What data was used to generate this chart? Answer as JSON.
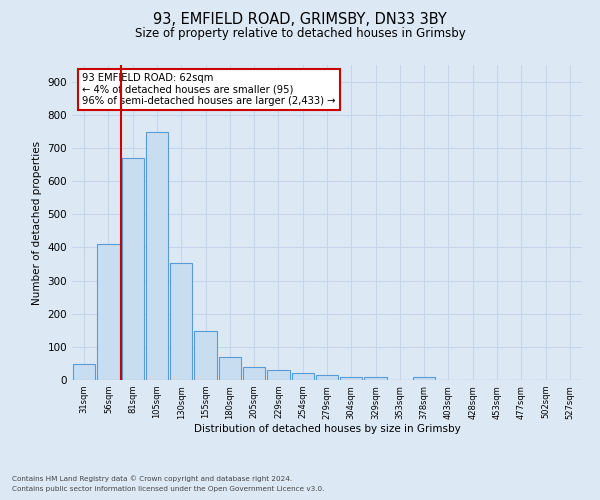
{
  "title": "93, EMFIELD ROAD, GRIMSBY, DN33 3BY",
  "subtitle": "Size of property relative to detached houses in Grimsby",
  "xlabel": "Distribution of detached houses by size in Grimsby",
  "ylabel": "Number of detached properties",
  "footnote1": "Contains HM Land Registry data © Crown copyright and database right 2024.",
  "footnote2": "Contains public sector information licensed under the Open Government Licence v3.0.",
  "annotation_line1": "93 EMFIELD ROAD: 62sqm",
  "annotation_line2": "← 4% of detached houses are smaller (95)",
  "annotation_line3": "96% of semi-detached houses are larger (2,433) →",
  "bar_values": [
    48,
    410,
    670,
    748,
    353,
    147,
    70,
    40,
    30,
    22,
    15,
    10,
    8,
    0,
    10,
    0,
    0,
    0,
    0,
    0,
    0
  ],
  "categories": [
    "31sqm",
    "56sqm",
    "81sqm",
    "105sqm",
    "130sqm",
    "155sqm",
    "180sqm",
    "205sqm",
    "229sqm",
    "254sqm",
    "279sqm",
    "304sqm",
    "329sqm",
    "353sqm",
    "378sqm",
    "403sqm",
    "428sqm",
    "453sqm",
    "477sqm",
    "502sqm",
    "527sqm"
  ],
  "bar_edge_color": "#5b9bd5",
  "bar_fill_color": "#c9ddf0",
  "grid_color": "#c8d4e8",
  "background_color": "#dce9f5",
  "annotation_box_color": "#ffffff",
  "annotation_box_edge": "#cc0000",
  "vline_color": "#cc0000",
  "ylim": [
    0,
    950
  ],
  "yticks": [
    0,
    100,
    200,
    300,
    400,
    500,
    600,
    700,
    800,
    900
  ]
}
